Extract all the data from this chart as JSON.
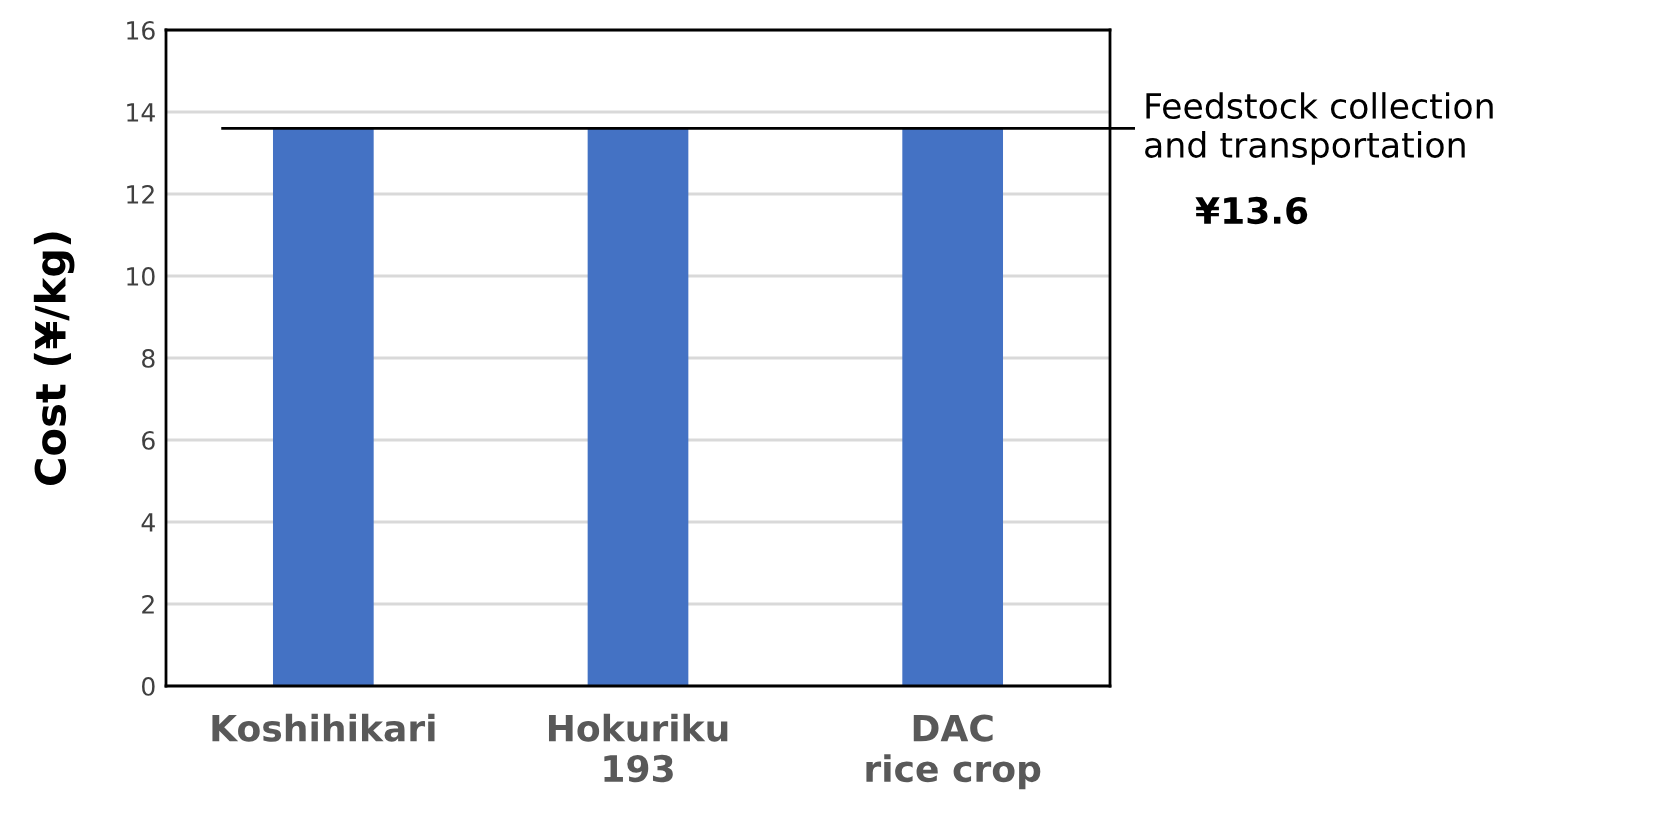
{
  "chart_data": {
    "type": "bar",
    "ylabel": "Cost (¥/kg)",
    "categories": [
      "Koshihikari",
      "Hokuriku\n193",
      "DAC\nrice crop"
    ],
    "values": [
      13.6,
      13.6,
      13.6
    ],
    "color": "#4472c4",
    "ylim": [
      0,
      16
    ],
    "yticks": [
      0,
      2,
      4,
      6,
      8,
      10,
      12,
      14,
      16
    ],
    "grid": "y",
    "ref_lines": [
      {
        "axis": "y",
        "value": 13.6,
        "label": "Feedstock collection\nand transportation",
        "color": "#000000"
      }
    ],
    "annotations": [
      "¥13.6"
    ]
  }
}
